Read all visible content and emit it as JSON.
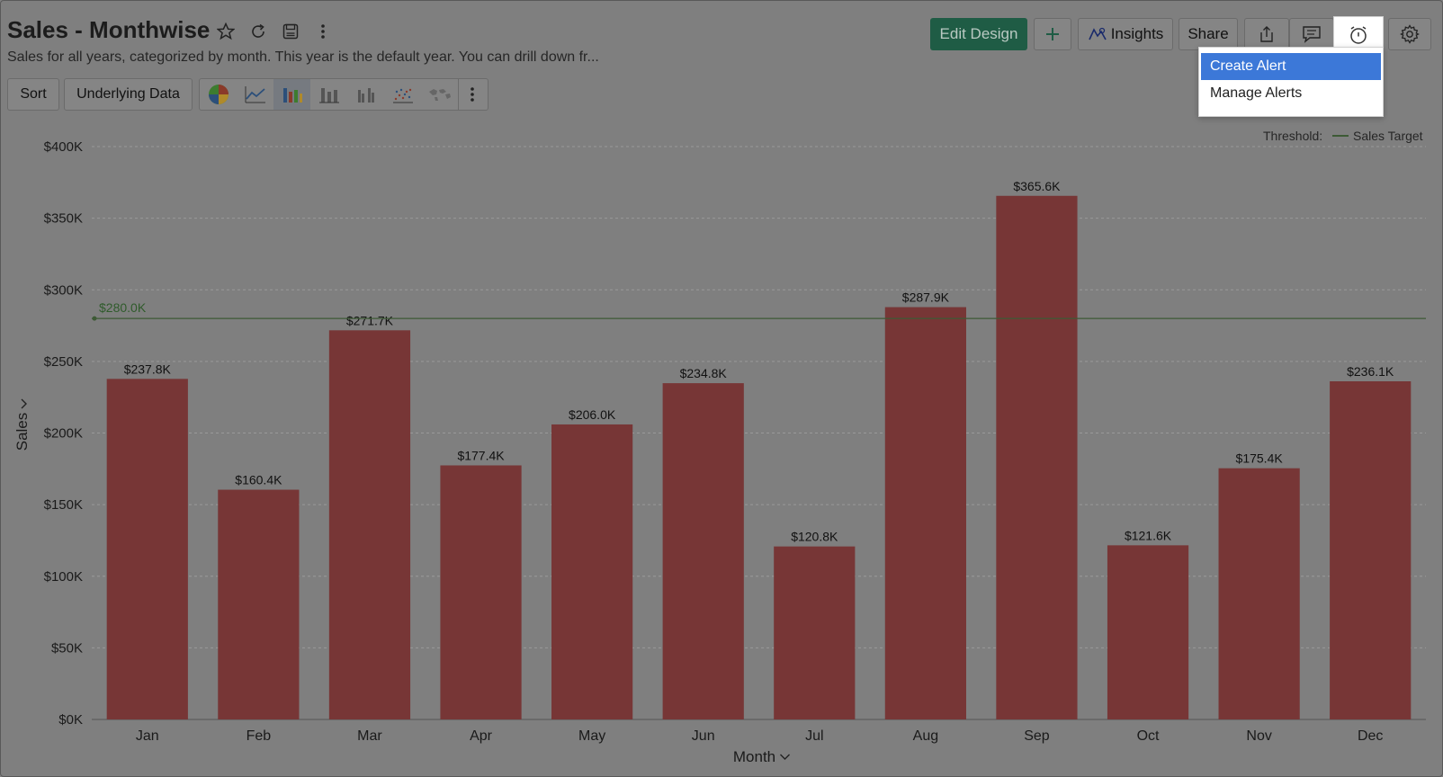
{
  "header": {
    "title": "Sales - Monthwise",
    "subtitle": "Sales for all years, categorized by month. This year is the default year. You can drill down fr..."
  },
  "toolbar": {
    "sort_label": "Sort",
    "underlying_label": "Underlying Data"
  },
  "actions": {
    "edit_design": "Edit Design",
    "insights": "Insights",
    "share": "Share"
  },
  "alerts_menu": {
    "items": [
      "Create Alert",
      "Manage Alerts"
    ]
  },
  "threshold": {
    "label": "Threshold:",
    "name": "Sales Target"
  },
  "colors": {
    "bar": "#773636",
    "threshold": "#3d5a35",
    "primary_button": "#1f5c45",
    "menu_highlight": "#3c78d8"
  },
  "chart_data": {
    "type": "bar",
    "title": "Sales - Monthwise",
    "xlabel": "Month",
    "ylabel": "Sales",
    "categories": [
      "Jan",
      "Feb",
      "Mar",
      "Apr",
      "May",
      "Jun",
      "Jul",
      "Aug",
      "Sep",
      "Oct",
      "Nov",
      "Dec"
    ],
    "values": [
      237800,
      160400,
      271700,
      177400,
      206000,
      234800,
      120800,
      287900,
      365600,
      121600,
      175400,
      236100
    ],
    "data_labels": [
      "$237.8K",
      "$160.4K",
      "$271.7K",
      "$177.4K",
      "$206.0K",
      "$234.8K",
      "$120.8K",
      "$287.9K",
      "$365.6K",
      "$121.6K",
      "$175.4K",
      "$236.1K"
    ],
    "y_ticks": [
      0,
      50000,
      100000,
      150000,
      200000,
      250000,
      300000,
      350000,
      400000
    ],
    "y_tick_labels": [
      "$0K",
      "$50K",
      "$100K",
      "$150K",
      "$200K",
      "$250K",
      "$300K",
      "$350K",
      "$400K"
    ],
    "ylim": [
      0,
      400000
    ],
    "threshold_value": 280000,
    "threshold_label": "$280.0K",
    "grid": true,
    "legend_position": "top-right"
  }
}
